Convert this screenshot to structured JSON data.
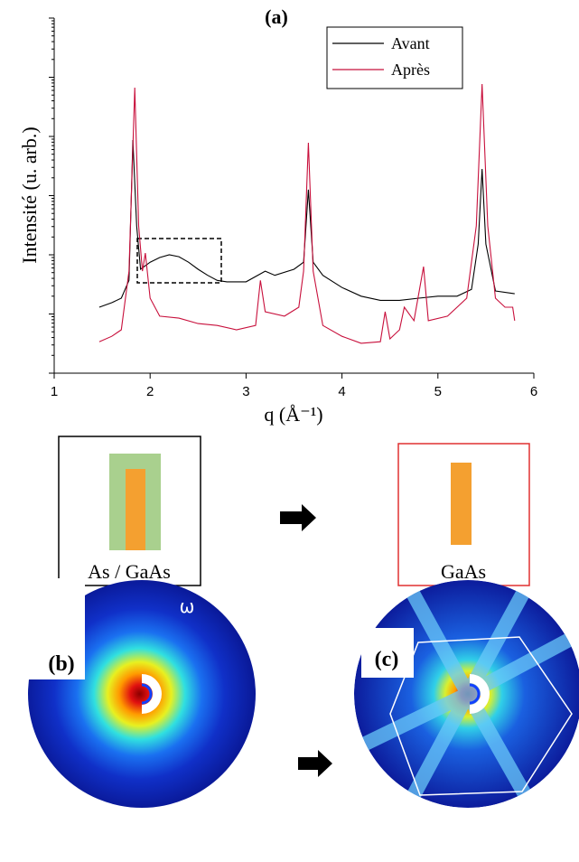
{
  "chart_data": {
    "type": "line",
    "title": "(a)",
    "xlabel": "q (Å⁻¹)",
    "ylabel": "Intensité (u. arb.)",
    "log_y": true,
    "xlim": [
      1,
      6
    ],
    "xticks": [
      1,
      2,
      3,
      4,
      5,
      6
    ],
    "ylim": [
      1,
      1000000
    ],
    "yticks": [
      1,
      10,
      100,
      1000,
      10000,
      100000,
      1000000
    ],
    "legend": "upper right",
    "series": [
      {
        "name": "Avant",
        "color": "#000000",
        "x": [
          1.47,
          1.6,
          1.7,
          1.78,
          1.82,
          1.86,
          1.9,
          2.0,
          2.1,
          2.2,
          2.3,
          2.4,
          2.5,
          2.6,
          2.7,
          2.8,
          3.0,
          3.2,
          3.3,
          3.5,
          3.6,
          3.65,
          3.7,
          3.8,
          4.0,
          4.2,
          4.4,
          4.6,
          4.8,
          5.0,
          5.2,
          5.35,
          5.42,
          5.46,
          5.5,
          5.6,
          5.8
        ],
        "values": [
          13,
          15.5,
          18.5,
          37,
          8700,
          308,
          57,
          75,
          90,
          100,
          93,
          75,
          57,
          45,
          37,
          35,
          35,
          53,
          45,
          57,
          75,
          1260,
          75,
          45,
          28,
          20,
          17,
          17,
          18.5,
          20,
          20,
          26,
          152,
          2820,
          152,
          24.5,
          22
        ]
      },
      {
        "name": "Après",
        "color": "#c8103c",
        "x": [
          1.47,
          1.6,
          1.7,
          1.78,
          1.84,
          1.88,
          1.92,
          1.95,
          2.0,
          2.1,
          2.3,
          2.5,
          2.7,
          2.9,
          3.1,
          3.15,
          3.2,
          3.4,
          3.55,
          3.6,
          3.65,
          3.7,
          3.8,
          4.0,
          4.2,
          4.4,
          4.45,
          4.5,
          4.6,
          4.65,
          4.75,
          4.85,
          4.9,
          5.1,
          5.3,
          5.4,
          5.46,
          5.52,
          5.6,
          5.7,
          5.78,
          5.8
        ],
        "values": [
          3.4,
          4.2,
          5.4,
          53,
          66700,
          308,
          53,
          107,
          18.5,
          9.2,
          8.5,
          6.9,
          6.4,
          5.4,
          6.4,
          37,
          10.9,
          9.2,
          13,
          53,
          7820,
          53,
          6.4,
          4.2,
          3.2,
          3.4,
          10.9,
          3.8,
          5.4,
          13,
          7.7,
          63,
          7.7,
          9.2,
          18.5,
          308,
          76800,
          308,
          18.5,
          13,
          13,
          7.7
        ]
      }
    ]
  },
  "diagram": {
    "left_label": "As / GaAs",
    "right_label": "GaAs"
  },
  "images": {
    "b_label": "(b)",
    "omega": "ω",
    "c_label": "(c)"
  }
}
